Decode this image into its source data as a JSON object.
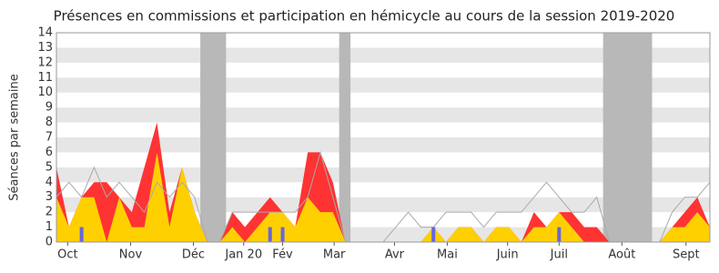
{
  "chart_data": {
    "type": "area",
    "title": "Présences en commissions et participation en hémicycle au cours de la session 2019-2020",
    "y_label": "Séances par semaine",
    "x": [
      0,
      1,
      2,
      3,
      4,
      5,
      6,
      7,
      8,
      9,
      10,
      11,
      12,
      13,
      14,
      15,
      16,
      17,
      18,
      19,
      20,
      21,
      22,
      23,
      24,
      25,
      26,
      27,
      28,
      29,
      30,
      31,
      32,
      33,
      34,
      35,
      36,
      37,
      38,
      39,
      40,
      41,
      42,
      43,
      44,
      45,
      46,
      47,
      48,
      49,
      50,
      51,
      52
    ],
    "xlim": [
      0,
      52
    ],
    "xticks": [
      {
        "value": 0.9,
        "label": "Oct"
      },
      {
        "value": 5.9,
        "label": "Nov"
      },
      {
        "value": 10.9,
        "label": "Déc"
      },
      {
        "value": 14.9,
        "label": "Jan 20"
      },
      {
        "value": 18,
        "label": "Fév"
      },
      {
        "value": 22.1,
        "label": "Mar"
      },
      {
        "value": 26.9,
        "label": "Avr"
      },
      {
        "value": 31.1,
        "label": "Mai"
      },
      {
        "value": 35.9,
        "label": "Juin"
      },
      {
        "value": 40,
        "label": "Juil"
      },
      {
        "value": 45,
        "label": "Août"
      },
      {
        "value": 50.1,
        "label": "Sept"
      }
    ],
    "ylim": [
      0,
      14
    ],
    "yticks": [
      0,
      1,
      2,
      3,
      4,
      5,
      6,
      7,
      8,
      9,
      10,
      11,
      12,
      13,
      14
    ],
    "grid": true,
    "shaded": [
      [
        11.45,
        13.5
      ],
      [
        22.5,
        23.4
      ],
      [
        43.5,
        47.4
      ]
    ],
    "shade_color": "#b8b8b8",
    "series": [
      {
        "style": "area",
        "color": "#ff3333",
        "values": [
          5,
          1,
          3,
          4,
          4,
          3,
          2,
          5,
          8,
          2,
          5,
          2,
          0,
          0,
          2,
          1,
          2,
          3,
          2,
          1,
          6,
          6,
          4,
          0,
          0,
          0,
          0,
          0,
          0,
          0,
          1,
          0,
          1,
          1,
          0,
          1,
          1,
          0,
          2,
          1,
          2,
          2,
          1,
          1,
          0,
          0,
          0,
          0,
          0,
          1,
          2,
          3,
          1
        ]
      },
      {
        "style": "area",
        "color": "#ffd000",
        "values": [
          3,
          1,
          3,
          3,
          0,
          3,
          1,
          1,
          6,
          1,
          5,
          2,
          0,
          0,
          1,
          0,
          1,
          2,
          2,
          1,
          3,
          2,
          2,
          0,
          0,
          0,
          0,
          0,
          0,
          0,
          1,
          0,
          1,
          1,
          0,
          1,
          1,
          0,
          1,
          1,
          2,
          1,
          0,
          0,
          0,
          0,
          0,
          0,
          0,
          1,
          1,
          2,
          1
        ]
      },
      {
        "style": "line",
        "color": "#aaaaaa",
        "values": [
          3,
          4,
          3,
          5,
          3,
          4,
          3,
          2,
          4,
          3,
          4,
          3,
          0,
          0,
          2,
          2,
          2,
          2,
          2,
          2,
          3,
          6,
          3,
          0,
          0,
          0,
          0,
          1,
          2,
          1,
          1,
          2,
          2,
          2,
          1,
          2,
          2,
          2,
          3,
          4,
          3,
          2,
          2,
          3,
          0,
          0,
          0,
          0,
          0,
          2,
          3,
          3,
          4
        ]
      },
      {
        "style": "bar",
        "color": "#6666dd",
        "x": [
          2,
          17,
          18,
          30,
          40
        ],
        "values": [
          1,
          1,
          1,
          1,
          1
        ]
      }
    ]
  }
}
